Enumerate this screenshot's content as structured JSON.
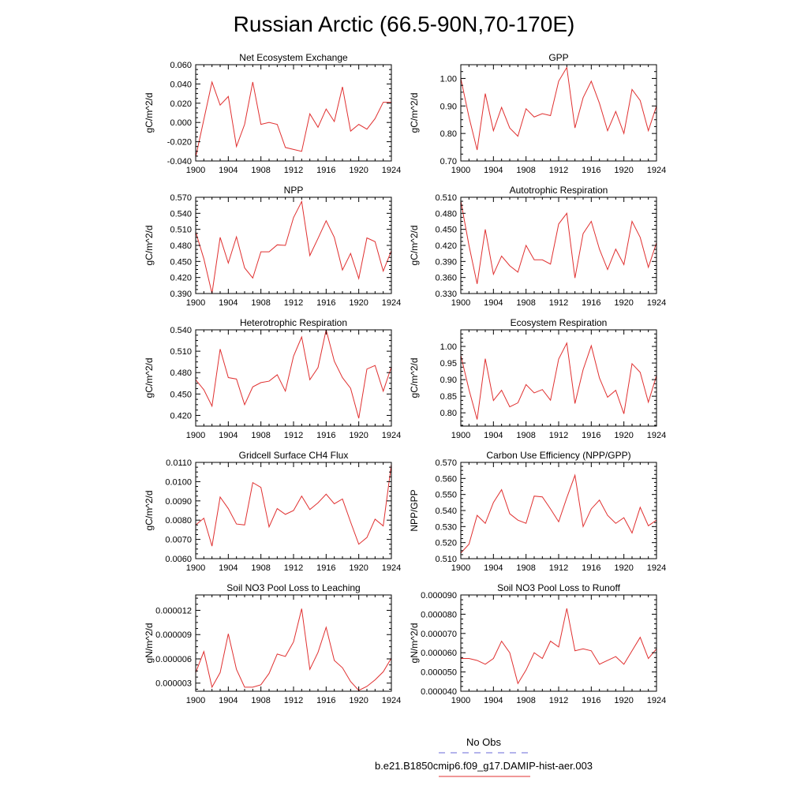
{
  "figure": {
    "title": "Russian Arctic (66.5-90N,70-170E)",
    "legend": [
      {
        "label": "No Obs",
        "color": "#6a6ad8",
        "dash": true
      },
      {
        "label": "b.e21.B1850cmip6.f09_g17.DAMIP-hist-aer.003",
        "color": "#e03030",
        "dash": false
      }
    ]
  },
  "chart_data": [
    {
      "type": "line",
      "title": "Net Ecosystem Exchange",
      "xlabel": "",
      "ylabel": "gC/m^2/d",
      "xlim": [
        1900,
        1924
      ],
      "ylim": [
        -0.04,
        0.06
      ],
      "xticks": [
        1900,
        1904,
        1908,
        1912,
        1916,
        1920,
        1924
      ],
      "yticks": [
        -0.04,
        -0.02,
        0.0,
        0.02,
        0.04,
        0.06
      ],
      "ytick_labels": [
        "-0.040",
        "-0.020",
        "0.000",
        "0.020",
        "0.040",
        "0.060"
      ],
      "series": [
        {
          "color": "#e03030",
          "x": [
            1900,
            1901,
            1902,
            1903,
            1904,
            1905,
            1906,
            1907,
            1908,
            1909,
            1910,
            1911,
            1912,
            1913,
            1914,
            1915,
            1916,
            1917,
            1918,
            1919,
            1920,
            1921,
            1922,
            1923,
            1924
          ],
          "y": [
            -0.036,
            0.003,
            0.042,
            0.018,
            0.027,
            -0.025,
            -0.002,
            0.042,
            -0.002,
            0.0,
            -0.002,
            -0.026,
            -0.028,
            -0.03,
            0.009,
            -0.005,
            0.014,
            0.001,
            0.037,
            -0.009,
            -0.002,
            -0.007,
            0.004,
            0.021,
            0.021
          ]
        }
      ]
    },
    {
      "type": "line",
      "title": "GPP",
      "xlabel": "",
      "ylabel": "gC/m^2/d",
      "xlim": [
        1900,
        1924
      ],
      "ylim": [
        0.7,
        1.05
      ],
      "xticks": [
        1900,
        1904,
        1908,
        1912,
        1916,
        1920,
        1924
      ],
      "yticks": [
        0.7,
        0.8,
        0.9,
        1.0
      ],
      "ytick_labels": [
        "0.70",
        "0.80",
        "0.90",
        "1.00"
      ],
      "series": [
        {
          "color": "#e03030",
          "x": [
            1900,
            1901,
            1902,
            1903,
            1904,
            1905,
            1906,
            1907,
            1908,
            1909,
            1910,
            1911,
            1912,
            1913,
            1914,
            1915,
            1916,
            1917,
            1918,
            1919,
            1920,
            1921,
            1922,
            1923,
            1924
          ],
          "y": [
            1.0,
            0.86,
            0.74,
            0.945,
            0.81,
            0.895,
            0.82,
            0.79,
            0.89,
            0.86,
            0.872,
            0.865,
            0.99,
            1.04,
            0.82,
            0.93,
            0.99,
            0.91,
            0.81,
            0.88,
            0.8,
            0.96,
            0.92,
            0.81,
            0.9
          ]
        }
      ]
    },
    {
      "type": "line",
      "title": "NPP",
      "xlabel": "",
      "ylabel": "gC/m^2/d",
      "xlim": [
        1900,
        1924
      ],
      "ylim": [
        0.39,
        0.57
      ],
      "xticks": [
        1900,
        1904,
        1908,
        1912,
        1916,
        1920,
        1924
      ],
      "yticks": [
        0.39,
        0.42,
        0.45,
        0.48,
        0.51,
        0.54,
        0.57
      ],
      "ytick_labels": [
        "0.390",
        "0.420",
        "0.450",
        "0.480",
        "0.510",
        "0.540",
        "0.570"
      ],
      "series": [
        {
          "color": "#e03030",
          "x": [
            1900,
            1901,
            1902,
            1903,
            1904,
            1905,
            1906,
            1907,
            1908,
            1909,
            1910,
            1911,
            1912,
            1913,
            1914,
            1915,
            1916,
            1917,
            1918,
            1919,
            1920,
            1921,
            1922,
            1923,
            1924
          ],
          "y": [
            0.505,
            0.455,
            0.39,
            0.495,
            0.447,
            0.496,
            0.438,
            0.419,
            0.468,
            0.468,
            0.481,
            0.48,
            0.532,
            0.562,
            0.461,
            0.493,
            0.526,
            0.495,
            0.434,
            0.465,
            0.418,
            0.494,
            0.487,
            0.432,
            0.47
          ]
        }
      ]
    },
    {
      "type": "line",
      "title": "Autotrophic Respiration",
      "xlabel": "",
      "ylabel": "gC/m^2/d",
      "xlim": [
        1900,
        1924
      ],
      "ylim": [
        0.33,
        0.51
      ],
      "xticks": [
        1900,
        1904,
        1908,
        1912,
        1916,
        1920,
        1924
      ],
      "yticks": [
        0.33,
        0.36,
        0.39,
        0.42,
        0.45,
        0.48,
        0.51
      ],
      "ytick_labels": [
        "0.330",
        "0.360",
        "0.390",
        "0.420",
        "0.450",
        "0.480",
        "0.510"
      ],
      "series": [
        {
          "color": "#e03030",
          "x": [
            1900,
            1901,
            1902,
            1903,
            1904,
            1905,
            1906,
            1907,
            1908,
            1909,
            1910,
            1911,
            1912,
            1913,
            1914,
            1915,
            1916,
            1917,
            1918,
            1919,
            1920,
            1921,
            1922,
            1923,
            1924
          ],
          "y": [
            0.503,
            0.42,
            0.348,
            0.45,
            0.366,
            0.4,
            0.382,
            0.37,
            0.42,
            0.393,
            0.393,
            0.385,
            0.46,
            0.48,
            0.359,
            0.442,
            0.465,
            0.413,
            0.375,
            0.413,
            0.384,
            0.465,
            0.435,
            0.379,
            0.425
          ]
        }
      ]
    },
    {
      "type": "line",
      "title": "Heterotrophic Respiration",
      "xlabel": "",
      "ylabel": "gC/m^2/d",
      "xlim": [
        1900,
        1924
      ],
      "ylim": [
        0.405,
        0.54
      ],
      "xticks": [
        1900,
        1904,
        1908,
        1912,
        1916,
        1920,
        1924
      ],
      "yticks": [
        0.42,
        0.45,
        0.48,
        0.51,
        0.54
      ],
      "ytick_labels": [
        "0.420",
        "0.450",
        "0.480",
        "0.510",
        "0.540"
      ],
      "series": [
        {
          "color": "#e03030",
          "x": [
            1900,
            1901,
            1902,
            1903,
            1904,
            1905,
            1906,
            1907,
            1908,
            1909,
            1910,
            1911,
            1912,
            1913,
            1914,
            1915,
            1916,
            1917,
            1918,
            1919,
            1920,
            1921,
            1922,
            1923,
            1924
          ],
          "y": [
            0.47,
            0.456,
            0.433,
            0.513,
            0.473,
            0.471,
            0.435,
            0.46,
            0.466,
            0.468,
            0.477,
            0.454,
            0.503,
            0.53,
            0.47,
            0.487,
            0.54,
            0.496,
            0.473,
            0.458,
            0.416,
            0.485,
            0.49,
            0.454,
            0.488
          ]
        }
      ]
    },
    {
      "type": "line",
      "title": "Ecosystem Respiration",
      "xlabel": "",
      "ylabel": "gC/m^2/d",
      "xlim": [
        1900,
        1924
      ],
      "ylim": [
        0.76,
        1.05
      ],
      "xticks": [
        1900,
        1904,
        1908,
        1912,
        1916,
        1920,
        1924
      ],
      "yticks": [
        0.8,
        0.85,
        0.9,
        0.95,
        1.0
      ],
      "ytick_labels": [
        "0.80",
        "0.85",
        "0.90",
        "0.95",
        "1.00"
      ],
      "series": [
        {
          "color": "#e03030",
          "x": [
            1900,
            1901,
            1902,
            1903,
            1904,
            1905,
            1906,
            1907,
            1908,
            1909,
            1910,
            1911,
            1912,
            1913,
            1914,
            1915,
            1916,
            1917,
            1918,
            1919,
            1920,
            1921,
            1922,
            1923,
            1924
          ],
          "y": [
            0.973,
            0.87,
            0.78,
            0.963,
            0.837,
            0.868,
            0.818,
            0.83,
            0.885,
            0.86,
            0.87,
            0.838,
            0.962,
            1.01,
            0.828,
            0.93,
            1.002,
            0.905,
            0.847,
            0.868,
            0.797,
            0.948,
            0.922,
            0.832,
            0.912
          ]
        }
      ]
    },
    {
      "type": "line",
      "title": "Gridcell Surface CH4 Flux",
      "xlabel": "",
      "ylabel": "gC/m^2/d",
      "xlim": [
        1900,
        1924
      ],
      "ylim": [
        0.006,
        0.011
      ],
      "xticks": [
        1900,
        1904,
        1908,
        1912,
        1916,
        1920,
        1924
      ],
      "yticks": [
        0.006,
        0.007,
        0.008,
        0.009,
        0.01,
        0.011
      ],
      "ytick_labels": [
        "0.0060",
        "0.0070",
        "0.0080",
        "0.0090",
        "0.0100",
        "0.0110"
      ],
      "series": [
        {
          "color": "#e03030",
          "x": [
            1900,
            1901,
            1902,
            1903,
            1904,
            1905,
            1906,
            1907,
            1908,
            1909,
            1910,
            1911,
            1912,
            1913,
            1914,
            1915,
            1916,
            1917,
            1918,
            1919,
            1920,
            1921,
            1922,
            1923,
            1924
          ],
          "y": [
            0.00775,
            0.0081,
            0.00665,
            0.0092,
            0.0086,
            0.0078,
            0.00775,
            0.00995,
            0.0097,
            0.00765,
            0.0086,
            0.0083,
            0.0085,
            0.00925,
            0.00855,
            0.0089,
            0.00935,
            0.00885,
            0.0091,
            0.0079,
            0.00675,
            0.0071,
            0.00805,
            0.0077,
            0.0109
          ]
        }
      ]
    },
    {
      "type": "line",
      "title": "Carbon Use Efficiency (NPP/GPP)",
      "xlabel": "",
      "ylabel": "NPP/GPP",
      "xlim": [
        1900,
        1924
      ],
      "ylim": [
        0.51,
        0.57
      ],
      "xticks": [
        1900,
        1904,
        1908,
        1912,
        1916,
        1920,
        1924
      ],
      "yticks": [
        0.51,
        0.52,
        0.53,
        0.54,
        0.55,
        0.56,
        0.57
      ],
      "ytick_labels": [
        "0.510",
        "0.520",
        "0.530",
        "0.540",
        "0.550",
        "0.560",
        "0.570"
      ],
      "series": [
        {
          "color": "#e03030",
          "x": [
            1900,
            1901,
            1902,
            1903,
            1904,
            1905,
            1906,
            1907,
            1908,
            1909,
            1910,
            1911,
            1912,
            1913,
            1914,
            1915,
            1916,
            1917,
            1918,
            1919,
            1920,
            1921,
            1922,
            1923,
            1924
          ],
          "y": [
            0.5135,
            0.519,
            0.537,
            0.532,
            0.545,
            0.553,
            0.538,
            0.534,
            0.532,
            0.549,
            0.5485,
            0.541,
            0.533,
            0.548,
            0.562,
            0.53,
            0.541,
            0.5465,
            0.537,
            0.532,
            0.5355,
            0.526,
            0.542,
            0.5305,
            0.534
          ]
        }
      ]
    },
    {
      "type": "line",
      "title": "Soil NO3 Pool Loss to Leaching",
      "xlabel": "",
      "ylabel": "gN/m^2/d",
      "xlim": [
        1900,
        1924
      ],
      "ylim": [
        2e-06,
        1.39e-05
      ],
      "xticks": [
        1900,
        1904,
        1908,
        1912,
        1916,
        1920,
        1924
      ],
      "yticks": [
        3e-06,
        6e-06,
        9e-06,
        1.2e-05
      ],
      "ytick_labels": [
        "0.000003",
        "0.000006",
        "0.000009",
        "0.000012"
      ],
      "series": [
        {
          "color": "#e03030",
          "x": [
            1900,
            1901,
            1902,
            1903,
            1904,
            1905,
            1906,
            1907,
            1908,
            1909,
            1910,
            1911,
            1912,
            1913,
            1914,
            1915,
            1916,
            1917,
            1918,
            1919,
            1920,
            1921,
            1922,
            1923,
            1924
          ],
          "y": [
            4.3e-06,
            6.9e-06,
            2.5e-06,
            4.3e-06,
            9.1e-06,
            4.7e-06,
            2.5e-06,
            2.5e-06,
            2.8e-06,
            4.2e-06,
            6.6e-06,
            6.3e-06,
            8.1e-06,
            1.22e-05,
            4.7e-06,
            6.8e-06,
            9.9e-06,
            5.8e-06,
            4.9e-06,
            3.2e-06,
            2.1e-06,
            2.6e-06,
            3.4e-06,
            4.4e-06,
            6.1e-06
          ]
        }
      ]
    },
    {
      "type": "line",
      "title": "Soil NO3 Pool Loss to Runoff",
      "xlabel": "",
      "ylabel": "gN/m^2/d",
      "xlim": [
        1900,
        1924
      ],
      "ylim": [
        4e-05,
        9e-05
      ],
      "xticks": [
        1900,
        1904,
        1908,
        1912,
        1916,
        1920,
        1924
      ],
      "yticks": [
        4e-05,
        5e-05,
        6e-05,
        7e-05,
        8e-05,
        9e-05
      ],
      "ytick_labels": [
        "0.000040",
        "0.000050",
        "0.000060",
        "0.000070",
        "0.000080",
        "0.000090"
      ],
      "series": [
        {
          "color": "#e03030",
          "x": [
            1900,
            1901,
            1902,
            1903,
            1904,
            1905,
            1906,
            1907,
            1908,
            1909,
            1910,
            1911,
            1912,
            1913,
            1914,
            1915,
            1916,
            1917,
            1918,
            1919,
            1920,
            1921,
            1922,
            1923,
            1924
          ],
          "y": [
            5.7e-05,
            5.7e-05,
            5.6e-05,
            5.4e-05,
            5.7e-05,
            6.6e-05,
            6e-05,
            4.4e-05,
            5.1e-05,
            6e-05,
            5.7e-05,
            6.6e-05,
            6.3e-05,
            8.3e-05,
            6.1e-05,
            6.2e-05,
            6.1e-05,
            5.4e-05,
            5.6e-05,
            5.8e-05,
            5.4e-05,
            6.1e-05,
            6.8e-05,
            5.7e-05,
            6.2e-05
          ]
        }
      ]
    }
  ]
}
